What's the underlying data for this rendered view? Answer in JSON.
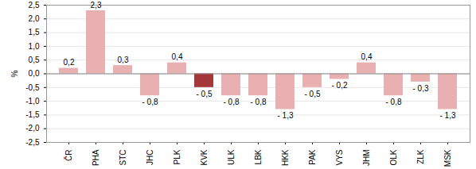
{
  "chart_data": {
    "type": "bar",
    "y_label": "%",
    "categories": [
      "ČR",
      "PHA",
      "STC",
      "JHC",
      "PLK",
      "KVK",
      "ULK",
      "LBK",
      "HKK",
      "PAK",
      "VYS",
      "JHM",
      "OLK",
      "ZLK",
      "MSK"
    ],
    "values": [
      0.2,
      2.3,
      0.3,
      -0.8,
      0.4,
      -0.5,
      -0.8,
      -0.8,
      -1.3,
      -0.5,
      -0.2,
      0.4,
      -0.8,
      -0.3,
      -1.3
    ],
    "value_labels": [
      "0,2",
      "2,3",
      "0,3",
      "- 0,8",
      "0,4",
      "- 0,5",
      "- 0,8",
      "- 0,8",
      "- 1,3",
      "- 0,5",
      "- 0,2",
      "0,4",
      "- 0,8",
      "- 0,3",
      "- 1,3"
    ],
    "colors": [
      "#e8b0b0",
      "#e8b0b0",
      "#e8b0b0",
      "#e8b0b0",
      "#e8b0b0",
      "#a4373a",
      "#e8b0b0",
      "#e8b0b0",
      "#e8b0b0",
      "#e8b0b0",
      "#e8b0b0",
      "#e8b0b0",
      "#e8b0b0",
      "#e8b0b0",
      "#e8b0b0"
    ],
    "ylim": [
      -2.5,
      2.5
    ],
    "yticks": [
      {
        "value": -2.5,
        "label": "-2,5"
      },
      {
        "value": -2.0,
        "label": "-2,0"
      },
      {
        "value": -1.5,
        "label": "-1,5"
      },
      {
        "value": -1.0,
        "label": "-1,0"
      },
      {
        "value": -0.5,
        "label": "-0,5"
      },
      {
        "value": 0,
        "label": "0,0"
      },
      {
        "value": 0.5,
        "label": "0,5"
      },
      {
        "value": 1.0,
        "label": "1,0"
      },
      {
        "value": 1.5,
        "label": "1,5"
      },
      {
        "value": 2.0,
        "label": "2,0"
      },
      {
        "value": 2.5,
        "label": "2,5"
      }
    ],
    "grid": true,
    "data_labels": true
  }
}
